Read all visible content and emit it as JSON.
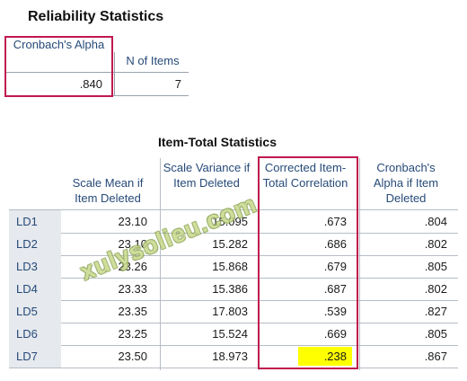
{
  "reliability": {
    "title": "Reliability Statistics",
    "headers": [
      "Cronbach's Alpha",
      "N of Items"
    ],
    "values": [
      ".840",
      "7"
    ]
  },
  "item_total": {
    "title": "Item-Total Statistics",
    "headers": [
      "Scale Mean if Item Deleted",
      "Scale Variance if Item Deleted",
      "Corrected Item-Total Correlation",
      "Cronbach's Alpha if Item Deleted"
    ],
    "rows": [
      {
        "label": "LD1",
        "mean": "23.10",
        "variance": "15.095",
        "corr": ".673",
        "alpha": ".804"
      },
      {
        "label": "LD2",
        "mean": "23.10",
        "variance": "15.282",
        "corr": ".686",
        "alpha": ".802"
      },
      {
        "label": "LD3",
        "mean": "23.26",
        "variance": "15.868",
        "corr": ".679",
        "alpha": ".805"
      },
      {
        "label": "LD4",
        "mean": "23.33",
        "variance": "15.386",
        "corr": ".687",
        "alpha": ".802"
      },
      {
        "label": "LD5",
        "mean": "23.35",
        "variance": "17.803",
        "corr": ".539",
        "alpha": ".827"
      },
      {
        "label": "LD6",
        "mean": "23.25",
        "variance": "15.524",
        "corr": ".669",
        "alpha": ".805"
      },
      {
        "label": "LD7",
        "mean": "23.50",
        "variance": "18.973",
        "corr": ".238",
        "alpha": ".867"
      }
    ],
    "highlight_color": "#ffff00"
  },
  "annotation_color": "#c0194e",
  "watermark": "xulysolieu.com"
}
